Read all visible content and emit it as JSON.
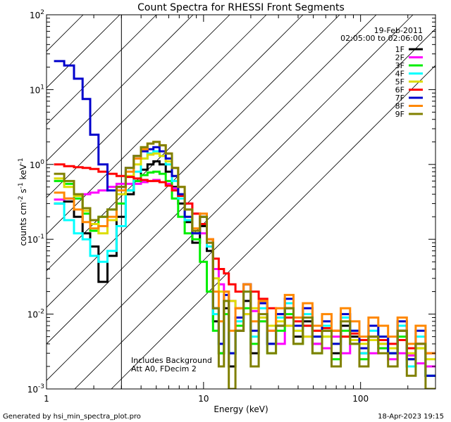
{
  "chart_data": {
    "type": "line",
    "title": "Count Spectra for RHESSI Front Segments",
    "xlabel": "Energy (keV)",
    "ylabel": "counts cm-2 s-1 keV-1",
    "ylabel_parts": {
      "base": "counts cm",
      "exp1": "-2",
      "mid1": " s",
      "exp2": "-1",
      "mid2": " keV",
      "exp3": "-1"
    },
    "xscale": "log",
    "yscale": "log",
    "xlim": [
      1,
      300
    ],
    "ylim": [
      0.001,
      100
    ],
    "x_ticks": [
      {
        "value": 1,
        "label": "1"
      },
      {
        "value": 10,
        "label": "10"
      },
      {
        "value": 100,
        "label": "100"
      }
    ],
    "y_ticks": [
      {
        "value": 0.001,
        "base": "10",
        "exp": "-3"
      },
      {
        "value": 0.01,
        "base": "10",
        "exp": "-2"
      },
      {
        "value": 0.1,
        "base": "10",
        "exp": "-1"
      },
      {
        "value": 1,
        "base": "10",
        "exp": "0"
      },
      {
        "value": 10,
        "base": "10",
        "exp": "1"
      },
      {
        "value": 100,
        "base": "10",
        "exp": "2"
      }
    ],
    "hatched_region": {
      "x_from": 1,
      "x_to": 3
    },
    "annotations": {
      "date": "19-Feb-2011",
      "time_range": "02:05:00 to 02:06:00",
      "note1": "Includes Background",
      "note2": "Att A0, FDecim 2"
    },
    "legend_position": "top-right",
    "energies": [
      1.2,
      1.4,
      1.6,
      1.8,
      2.0,
      2.3,
      2.6,
      3.0,
      3.4,
      3.8,
      4.2,
      4.6,
      5.0,
      5.5,
      6.0,
      6.6,
      7.2,
      8.0,
      9.0,
      10.0,
      11.0,
      12.0,
      13.0,
      14.0,
      15.0,
      17.0,
      19.0,
      21.0,
      24.0,
      27.0,
      31.0,
      35.0,
      40.0,
      46.0,
      53.0,
      61.0,
      70.0,
      80.0,
      92.0,
      105.0,
      120.0,
      140.0,
      160.0,
      185.0,
      210.0,
      240.0,
      280.0
    ],
    "series": [
      {
        "name": "1F",
        "color": "#000000",
        "values": [
          0.3,
          0.32,
          0.2,
          0.12,
          0.08,
          0.027,
          0.06,
          0.2,
          0.4,
          0.6,
          0.85,
          1.0,
          1.1,
          1.0,
          0.8,
          0.5,
          0.3,
          0.17,
          0.09,
          0.15,
          0.07,
          0.008,
          0.003,
          0.012,
          0.002,
          0.006,
          0.015,
          0.003,
          0.009,
          0.004,
          0.007,
          0.012,
          0.005,
          0.008,
          0.004,
          0.006,
          0.003,
          0.007,
          0.005,
          0.003,
          0.005,
          0.004,
          0.003,
          0.006,
          0.002,
          0.004,
          0.0015
        ]
      },
      {
        "name": "2F",
        "color": "#ff00ff",
        "values": [
          0.34,
          0.35,
          0.38,
          0.4,
          0.42,
          0.45,
          0.5,
          0.55,
          0.55,
          0.55,
          0.58,
          0.6,
          0.62,
          0.58,
          0.55,
          0.48,
          0.4,
          0.3,
          0.22,
          0.12,
          0.08,
          0.04,
          0.025,
          0.02,
          0.015,
          0.012,
          0.01,
          0.011,
          0.008,
          0.006,
          0.004,
          0.007,
          0.009,
          0.005,
          0.004,
          0.0035,
          0.005,
          0.003,
          0.004,
          0.0045,
          0.003,
          0.0035,
          0.0025,
          0.003,
          0.0028,
          0.0022,
          0.002
        ]
      },
      {
        "name": "3F",
        "color": "#00ee00",
        "values": [
          0.6,
          0.55,
          0.35,
          0.22,
          0.13,
          0.2,
          0.25,
          0.3,
          0.45,
          0.6,
          0.72,
          0.78,
          0.8,
          0.75,
          0.6,
          0.35,
          0.2,
          0.12,
          0.1,
          0.05,
          0.02,
          0.006,
          0.003,
          0.01,
          0.003,
          0.007,
          0.012,
          0.004,
          0.008,
          0.003,
          0.006,
          0.01,
          0.004,
          0.007,
          0.003,
          0.005,
          0.0025,
          0.006,
          0.004,
          0.0025,
          0.0045,
          0.0035,
          0.003,
          0.005,
          0.0025,
          0.0035,
          0.0015
        ]
      },
      {
        "name": "4F",
        "color": "#00ffff",
        "values": [
          0.3,
          0.18,
          0.12,
          0.1,
          0.06,
          0.05,
          0.07,
          0.15,
          0.45,
          0.8,
          1.2,
          1.4,
          1.5,
          1.3,
          1.0,
          0.6,
          0.35,
          0.18,
          0.12,
          0.2,
          0.08,
          0.01,
          0.004,
          0.015,
          0.003,
          0.008,
          0.02,
          0.005,
          0.012,
          0.004,
          0.009,
          0.014,
          0.006,
          0.01,
          0.005,
          0.007,
          0.004,
          0.009,
          0.006,
          0.003,
          0.006,
          0.005,
          0.003,
          0.007,
          0.002,
          0.005,
          0.0015
        ]
      },
      {
        "name": "5F",
        "color": "#dddd00",
        "values": [
          0.65,
          0.5,
          0.38,
          0.24,
          0.16,
          0.12,
          0.18,
          0.4,
          0.7,
          1.0,
          1.2,
          1.35,
          1.4,
          1.3,
          1.1,
          0.7,
          0.4,
          0.2,
          0.12,
          0.2,
          0.1,
          0.03,
          0.02,
          0.02,
          0.015,
          0.012,
          0.01,
          0.012,
          0.009,
          0.007,
          0.008,
          0.007,
          0.006,
          0.005,
          0.006,
          0.005,
          0.004,
          0.005,
          0.0045,
          0.004,
          0.0045,
          0.004,
          0.0035,
          0.0045,
          0.003,
          0.0035,
          0.0025
        ]
      },
      {
        "name": "6F",
        "color": "#ff0000",
        "values": [
          1.0,
          0.95,
          0.92,
          0.9,
          0.87,
          0.8,
          0.75,
          0.7,
          0.68,
          0.65,
          0.62,
          0.6,
          0.6,
          0.58,
          0.52,
          0.45,
          0.38,
          0.3,
          0.22,
          0.16,
          0.1,
          0.055,
          0.04,
          0.035,
          0.025,
          0.02,
          0.025,
          0.02,
          0.016,
          0.012,
          0.01,
          0.009,
          0.008,
          0.007,
          0.006,
          0.0065,
          0.006,
          0.005,
          0.0055,
          0.0045,
          0.005,
          0.0045,
          0.004,
          0.0045,
          0.0035,
          0.004,
          0.003
        ]
      },
      {
        "name": "7F",
        "color": "#0000cc",
        "values": [
          24.0,
          21.0,
          14.0,
          7.5,
          2.5,
          1.0,
          0.45,
          0.5,
          0.9,
          1.3,
          1.5,
          1.6,
          1.7,
          1.5,
          1.2,
          0.7,
          0.4,
          0.2,
          0.12,
          0.2,
          0.09,
          0.012,
          0.004,
          0.018,
          0.003,
          0.009,
          0.025,
          0.006,
          0.014,
          0.004,
          0.01,
          0.016,
          0.007,
          0.012,
          0.005,
          0.008,
          0.004,
          0.01,
          0.006,
          0.0035,
          0.007,
          0.005,
          0.003,
          0.008,
          0.0025,
          0.006,
          0.0015
        ]
      },
      {
        "name": "8F",
        "color": "#ff8800",
        "values": [
          0.42,
          0.35,
          0.25,
          0.17,
          0.14,
          0.15,
          0.2,
          0.45,
          0.8,
          1.2,
          1.6,
          1.9,
          2.0,
          1.8,
          1.4,
          0.9,
          0.5,
          0.25,
          0.14,
          0.22,
          0.1,
          0.02,
          0.008,
          0.02,
          0.006,
          0.012,
          0.025,
          0.008,
          0.015,
          0.006,
          0.012,
          0.018,
          0.009,
          0.014,
          0.007,
          0.01,
          0.006,
          0.012,
          0.008,
          0.005,
          0.009,
          0.007,
          0.005,
          0.009,
          0.004,
          0.007,
          0.003
        ]
      },
      {
        "name": "9F",
        "color": "#808000",
        "values": [
          0.75,
          0.6,
          0.4,
          0.26,
          0.18,
          0.2,
          0.25,
          0.5,
          0.9,
          1.3,
          1.7,
          1.9,
          2.0,
          1.8,
          1.4,
          0.9,
          0.5,
          0.25,
          0.13,
          0.2,
          0.09,
          0.012,
          0.002,
          0.015,
          0.001,
          0.006,
          0.02,
          0.002,
          0.01,
          0.003,
          0.007,
          0.012,
          0.004,
          0.009,
          0.003,
          0.006,
          0.002,
          0.008,
          0.004,
          0.002,
          0.005,
          0.003,
          0.002,
          0.006,
          0.0015,
          0.004,
          0.001
        ]
      }
    ]
  },
  "footer": {
    "generated_by": "Generated by hsi_min_spectra_plot.pro",
    "timestamp": "18-Apr-2023 19:15"
  }
}
